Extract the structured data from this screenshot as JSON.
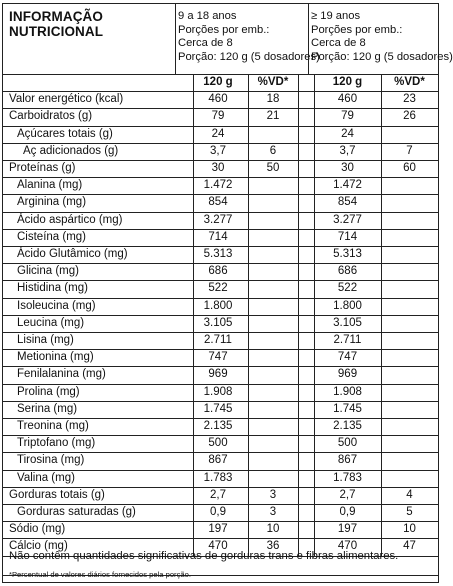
{
  "header": {
    "title_line1": "INFORMAÇÃO",
    "title_line2": "NUTRICIONAL",
    "groups": [
      {
        "age": "9 a 18 anos",
        "portions": "Porções por emb.:",
        "amount": "Cerca de 8",
        "serving": "Porção: 120 g (5 dosadores)"
      },
      {
        "age": "≥ 19 anos",
        "portions": "Porções por emb.:",
        "amount": "Cerca de 8",
        "serving": "Porção: 120 g (5 dosadores)"
      }
    ]
  },
  "columns": [
    "120 g",
    "%VD*",
    "120 g",
    "%VD*"
  ],
  "rows": [
    {
      "name": "Valor energético (kcal)",
      "indent": 0,
      "values": [
        "460",
        "18",
        "460",
        "23"
      ]
    },
    {
      "name": "Carboidratos (g)",
      "indent": 0,
      "values": [
        "79",
        "21",
        "79",
        "26"
      ]
    },
    {
      "name": "Açúcares totais (g)",
      "indent": 1,
      "values": [
        "24",
        "",
        "24",
        ""
      ]
    },
    {
      "name": "Aç adicionados (g)",
      "indent": 2,
      "values": [
        "3,7",
        "6",
        "3,7",
        "7"
      ]
    },
    {
      "name": "Proteínas (g)",
      "indent": 0,
      "values": [
        "30",
        "50",
        "30",
        "60"
      ]
    },
    {
      "name": "Alanina (mg)",
      "indent": 1,
      "values": [
        "1.472",
        "",
        "1.472",
        ""
      ]
    },
    {
      "name": "Arginina (mg)",
      "indent": 1,
      "values": [
        "854",
        "",
        "854",
        ""
      ]
    },
    {
      "name": "Ácido aspártico (mg)",
      "indent": 1,
      "values": [
        "3.277",
        "",
        "3.277",
        ""
      ]
    },
    {
      "name": "Cisteína (mg)",
      "indent": 1,
      "values": [
        "714",
        "",
        "714",
        ""
      ]
    },
    {
      "name": "Ácido Glutâmico (mg)",
      "indent": 1,
      "values": [
        "5.313",
        "",
        "5.313",
        ""
      ]
    },
    {
      "name": "Glicina (mg)",
      "indent": 1,
      "values": [
        "686",
        "",
        "686",
        ""
      ]
    },
    {
      "name": "Histidina (mg)",
      "indent": 1,
      "values": [
        "522",
        "",
        "522",
        ""
      ]
    },
    {
      "name": "Isoleucina (mg)",
      "indent": 1,
      "values": [
        "1.800",
        "",
        "1.800",
        ""
      ]
    },
    {
      "name": "Leucina (mg)",
      "indent": 1,
      "values": [
        "3.105",
        "",
        "3.105",
        ""
      ]
    },
    {
      "name": "Lisina (mg)",
      "indent": 1,
      "values": [
        "2.711",
        "",
        "2.711",
        ""
      ]
    },
    {
      "name": "Metionina (mg)",
      "indent": 1,
      "values": [
        "747",
        "",
        "747",
        ""
      ]
    },
    {
      "name": "Fenilalanina (mg)",
      "indent": 1,
      "values": [
        "969",
        "",
        "969",
        ""
      ]
    },
    {
      "name": "Prolina (mg)",
      "indent": 1,
      "values": [
        "1.908",
        "",
        "1.908",
        ""
      ]
    },
    {
      "name": "Serina (mg)",
      "indent": 1,
      "values": [
        "1.745",
        "",
        "1.745",
        ""
      ]
    },
    {
      "name": "Treonina (mg)",
      "indent": 1,
      "values": [
        "2.135",
        "",
        "2.135",
        ""
      ]
    },
    {
      "name": "Triptofano (mg)",
      "indent": 1,
      "values": [
        "500",
        "",
        "500",
        ""
      ]
    },
    {
      "name": "Tirosina (mg)",
      "indent": 1,
      "values": [
        "867",
        "",
        "867",
        ""
      ]
    },
    {
      "name": "Valina (mg)",
      "indent": 1,
      "values": [
        "1.783",
        "",
        "1.783",
        ""
      ]
    },
    {
      "name": "Gorduras totais (g)",
      "indent": 0,
      "values": [
        "2,7",
        "3",
        "2,7",
        "4"
      ]
    },
    {
      "name": "Gorduras saturadas (g)",
      "indent": 1,
      "values": [
        "0,9",
        "3",
        "0,9",
        "5"
      ]
    },
    {
      "name": "Sódio (mg)",
      "indent": 0,
      "values": [
        "197",
        "10",
        "197",
        "10"
      ]
    },
    {
      "name": "Cálcio (mg)",
      "indent": 0,
      "values": [
        "470",
        "36",
        "470",
        "47"
      ]
    }
  ],
  "footer": {
    "note": "Não contêm quantidades significativas de gorduras trans e fibras alimentares.",
    "footnote": "*Percentual de valores diários fornecidos pela porção."
  }
}
